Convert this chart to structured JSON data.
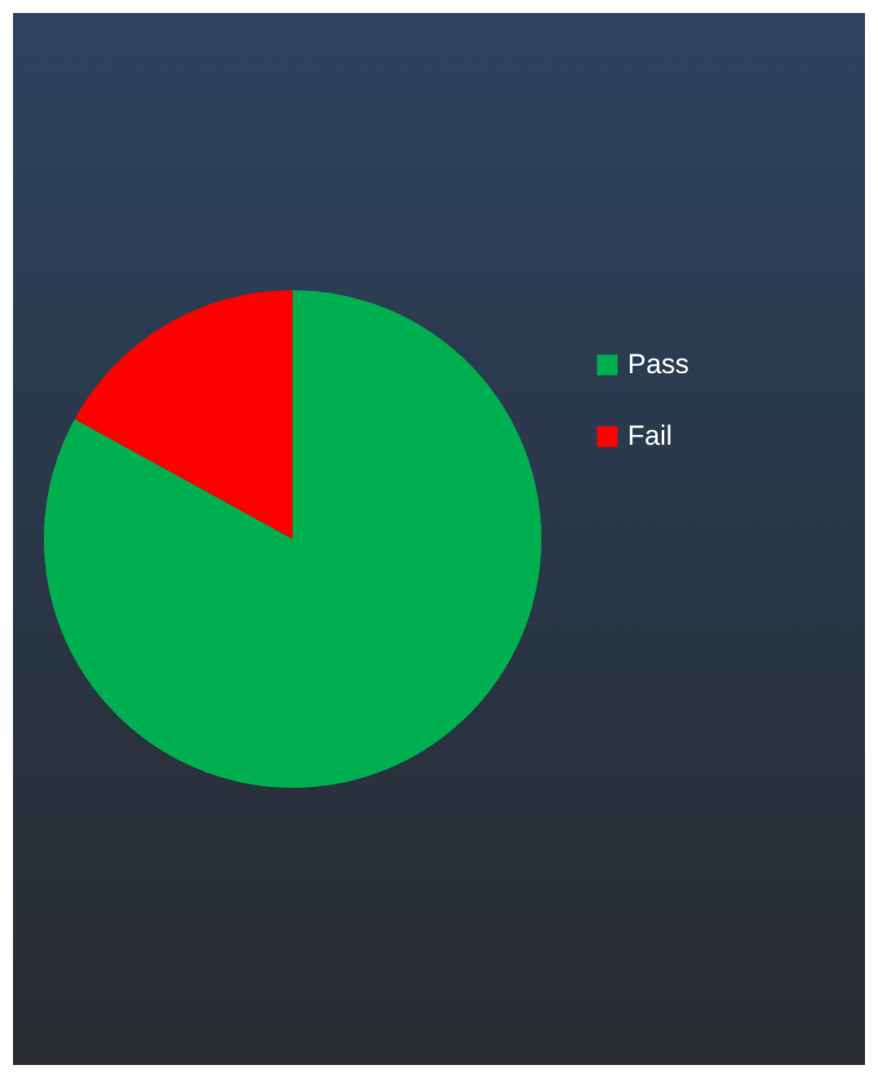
{
  "chart_data": {
    "type": "pie",
    "categories": [
      "Pass",
      "Fail"
    ],
    "values": [
      83,
      17
    ],
    "colors": [
      "#00b050",
      "#ff0000"
    ],
    "legend": "right"
  }
}
